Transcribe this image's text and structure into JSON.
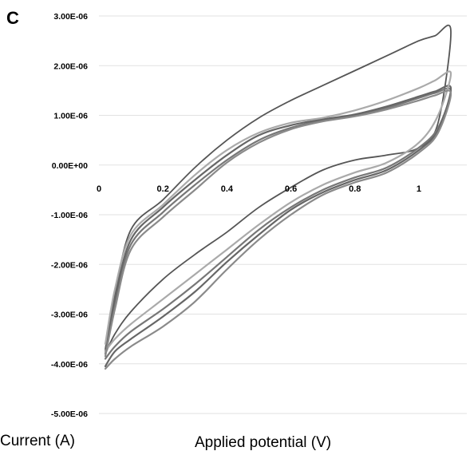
{
  "panel_label": "C",
  "chart_data": {
    "type": "line",
    "title": "",
    "xlabel": "Applied potential (V)",
    "ylabel": "Current (A)",
    "xlim": [
      0,
      1.1
    ],
    "ylim": [
      -5e-06,
      3e-06
    ],
    "y_ticks": [
      {
        "value": 3e-06,
        "label": "3.00E-06"
      },
      {
        "value": 2e-06,
        "label": "2.00E-06"
      },
      {
        "value": 1e-06,
        "label": "1.00E-06"
      },
      {
        "value": 0.0,
        "label": "0.00E+00"
      },
      {
        "value": -1e-06,
        "label": "-1.00E-06"
      },
      {
        "value": -2e-06,
        "label": "-2.00E-06"
      },
      {
        "value": -3e-06,
        "label": "-3.00E-06"
      },
      {
        "value": -4e-06,
        "label": "-4.00E-06"
      },
      {
        "value": -5e-06,
        "label": "-5.00E-06"
      }
    ],
    "x_ticks": [
      {
        "value": 0,
        "label": "0"
      },
      {
        "value": 0.2,
        "label": "0.2"
      },
      {
        "value": 0.4,
        "label": "0.4"
      },
      {
        "value": 0.6,
        "label": "0.6"
      },
      {
        "value": 0.8,
        "label": "0.8"
      },
      {
        "value": 1.0,
        "label": "1"
      }
    ],
    "grid": true,
    "legend": "none",
    "series": [
      {
        "color": "#555555",
        "x": [
          0.02,
          0.05,
          0.1,
          0.2,
          0.3,
          0.4,
          0.5,
          0.6,
          0.7,
          0.8,
          0.9,
          1.0,
          1.05,
          1.1,
          1.06,
          1.0,
          0.9,
          0.8,
          0.7,
          0.6,
          0.5,
          0.4,
          0.3,
          0.2,
          0.1,
          0.05,
          0.02
        ],
        "y": [
          -3.7e-06,
          -2.6e-06,
          -1.3e-06,
          -7e-07,
          -5e-08,
          5e-07,
          9.5e-07,
          1.3e-06,
          1.6e-06,
          1.9e-06,
          2.2e-06,
          2.5e-06,
          2.6e-06,
          2.7e-06,
          8.5e-07,
          3.5e-07,
          2e-07,
          1e-07,
          -1e-07,
          -4.5e-07,
          -8.5e-07,
          -1.35e-06,
          -1.8e-06,
          -2.3e-06,
          -2.95e-06,
          -3.4e-06,
          -3.8e-06
        ]
      },
      {
        "color": "#777777",
        "x": [
          0.02,
          0.05,
          0.1,
          0.2,
          0.3,
          0.4,
          0.5,
          0.6,
          0.7,
          0.8,
          0.9,
          1.0,
          1.05,
          1.1,
          1.06,
          1.0,
          0.9,
          0.8,
          0.7,
          0.6,
          0.5,
          0.4,
          0.3,
          0.2,
          0.1,
          0.05,
          0.02
        ],
        "y": [
          -3.8e-06,
          -2.8e-06,
          -1.6e-06,
          -9.5e-07,
          -4e-07,
          1e-07,
          5e-07,
          7.5e-07,
          9e-07,
          1e-06,
          1.15e-06,
          1.35e-06,
          1.45e-06,
          1.5e-06,
          7.5e-07,
          3.5e-07,
          -5e-08,
          -2.5e-07,
          -5e-07,
          -8.5e-07,
          -1.3e-06,
          -1.85e-06,
          -2.4e-06,
          -2.9e-06,
          -3.35e-06,
          -3.65e-06,
          -3.9e-06
        ]
      },
      {
        "color": "#666666",
        "x": [
          0.02,
          0.05,
          0.1,
          0.2,
          0.3,
          0.4,
          0.5,
          0.6,
          0.7,
          0.8,
          0.9,
          1.0,
          1.05,
          1.1,
          1.06,
          1.0,
          0.9,
          0.8,
          0.7,
          0.6,
          0.5,
          0.4,
          0.3,
          0.2,
          0.1,
          0.05,
          0.02
        ],
        "y": [
          -3.75e-06,
          -2.7e-06,
          -1.5e-06,
          -8.5e-07,
          -3e-07,
          2e-07,
          6e-07,
          8e-07,
          9.2e-07,
          1.02e-06,
          1.18e-06,
          1.38e-06,
          1.48e-06,
          1.55e-06,
          7e-07,
          3e-07,
          -1e-07,
          -3e-07,
          -5.5e-07,
          -9e-07,
          -1.4e-06,
          -1.95e-06,
          -2.55e-06,
          -3.05e-06,
          -3.5e-06,
          -3.75e-06,
          -4.05e-06
        ]
      },
      {
        "color": "#aaaaaa",
        "x": [
          0.02,
          0.05,
          0.1,
          0.2,
          0.3,
          0.4,
          0.5,
          0.6,
          0.7,
          0.8,
          0.9,
          1.0,
          1.05,
          1.1,
          1.06,
          1.0,
          0.9,
          0.8,
          0.7,
          0.6,
          0.5,
          0.4,
          0.3,
          0.2,
          0.1,
          0.05,
          0.02
        ],
        "y": [
          -3.6e-06,
          -2.5e-06,
          -1.4e-06,
          -8e-07,
          -2e-07,
          3e-07,
          6.5e-07,
          8.5e-07,
          9.5e-07,
          1.1e-06,
          1.3e-06,
          1.55e-06,
          1.7e-06,
          1.85e-06,
          1e-06,
          4.5e-07,
          5e-08,
          -1.5e-07,
          -4e-07,
          -7.5e-07,
          -1.2e-06,
          -1.7e-06,
          -2.2e-06,
          -2.7e-06,
          -3.2e-06,
          -3.5e-06,
          -3.75e-06
        ]
      },
      {
        "color": "#8a8a8a",
        "x": [
          0.02,
          0.05,
          0.1,
          0.2,
          0.3,
          0.4,
          0.5,
          0.6,
          0.7,
          0.8,
          0.9,
          1.0,
          1.05,
          1.1,
          1.06,
          1.0,
          0.9,
          0.8,
          0.7,
          0.6,
          0.5,
          0.4,
          0.3,
          0.2,
          0.1,
          0.05,
          0.02
        ],
        "y": [
          -3.85e-06,
          -2.9e-06,
          -1.7e-06,
          -1.05e-06,
          -5e-07,
          5e-08,
          4.5e-07,
          7.2e-07,
          8.8e-07,
          9.8e-07,
          1.12e-06,
          1.3e-06,
          1.4e-06,
          1.45e-06,
          6.5e-07,
          2.5e-07,
          -1.5e-07,
          -3.5e-07,
          -6e-07,
          -1e-06,
          -1.5e-06,
          -2.1e-06,
          -2.75e-06,
          -3.25e-06,
          -3.65e-06,
          -3.9e-06,
          -4.1e-06
        ]
      }
    ]
  }
}
